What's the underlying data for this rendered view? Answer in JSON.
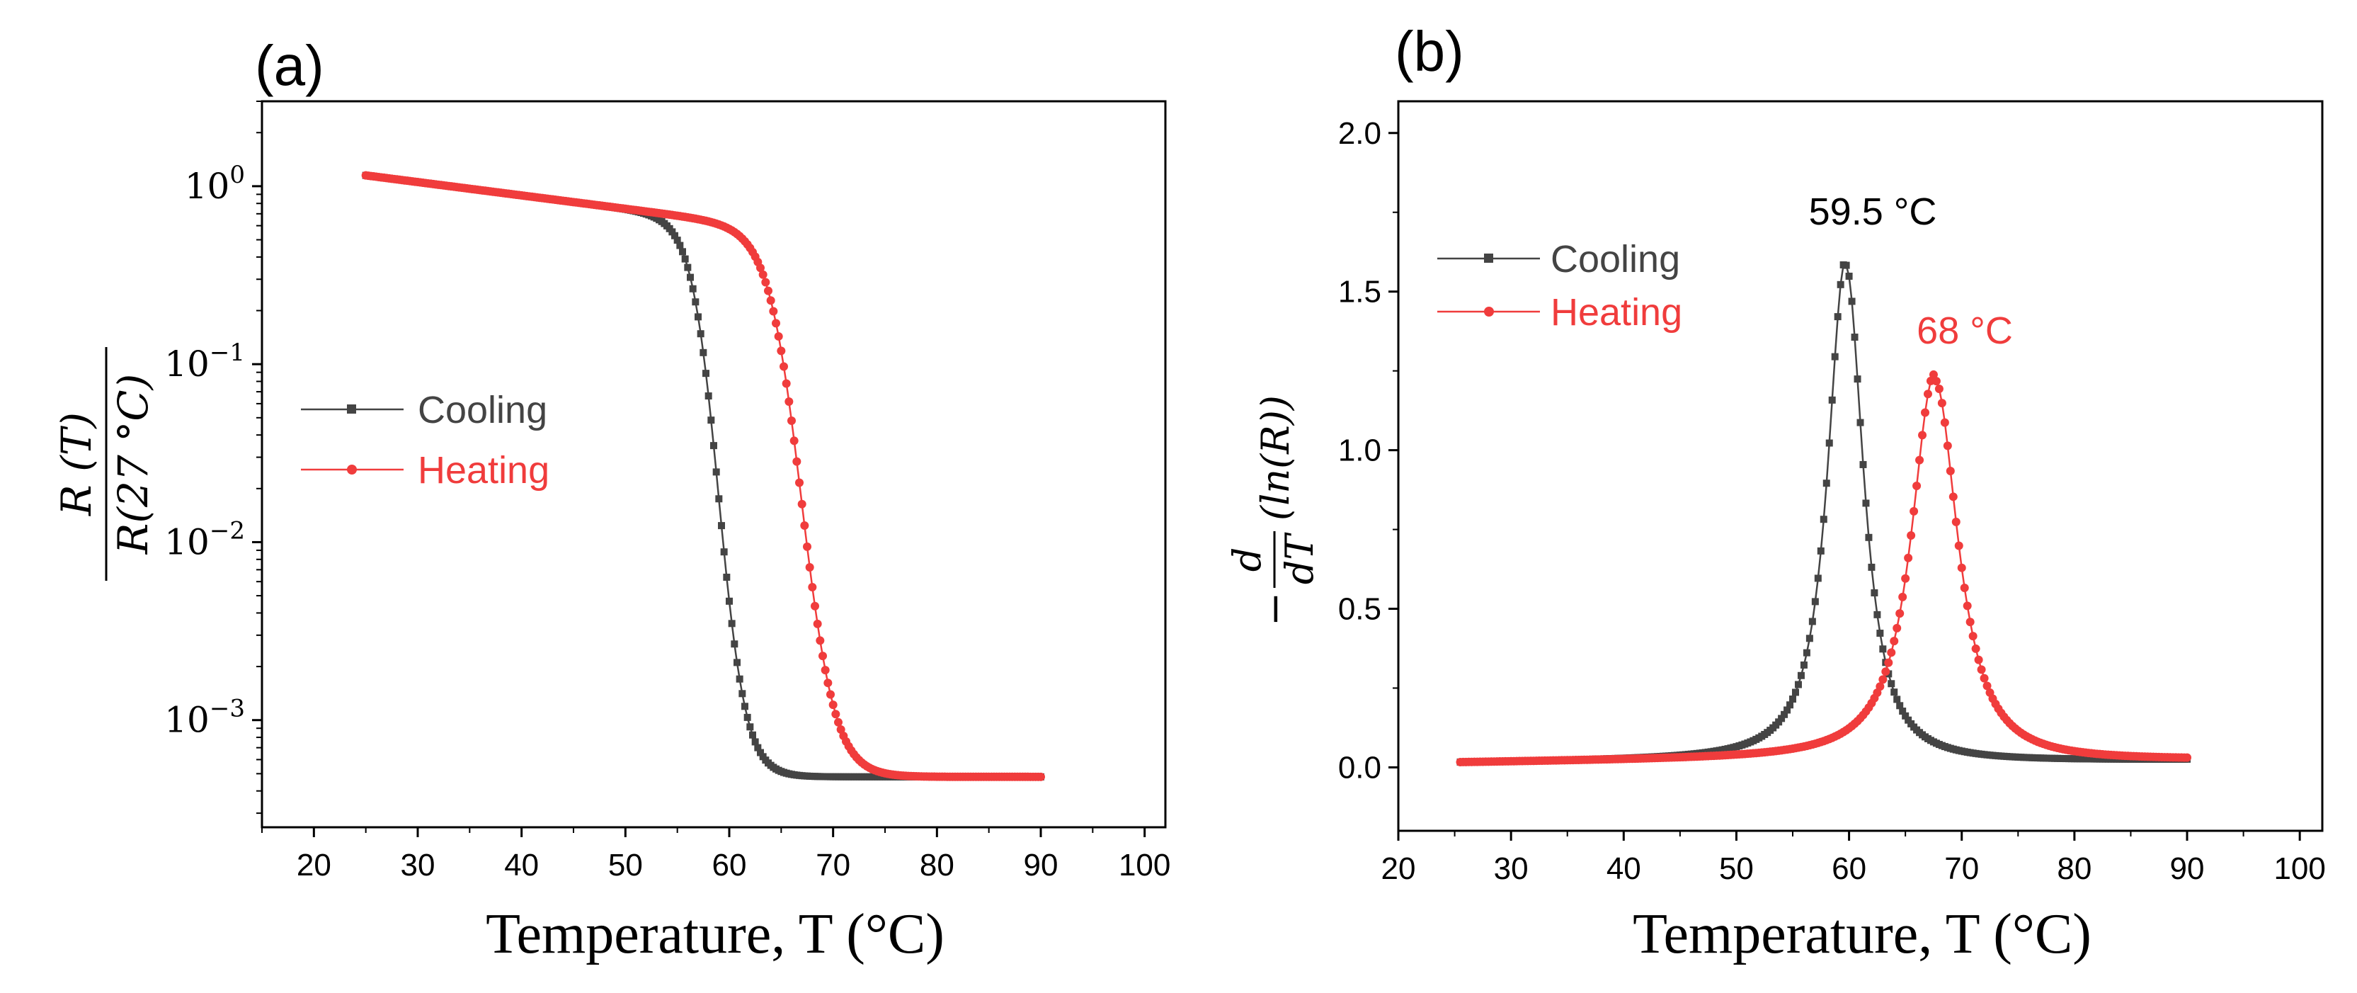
{
  "colors": {
    "cooling": "#444444",
    "heating": "#f03c3c"
  },
  "chart_data": [
    {
      "panel_label": "(a)",
      "type": "line",
      "yscale": "log",
      "xlabel": "Temperature, T (°C)",
      "ylabel": {
        "numerator": "R (T)",
        "denominator": "R(27 °C)"
      },
      "xlim": [
        15,
        102
      ],
      "ylim": [
        0.00025,
        3
      ],
      "xticks": [
        "20",
        "30",
        "40",
        "50",
        "60",
        "70",
        "80",
        "90",
        "100"
      ],
      "yticks": [
        {
          "base": "10",
          "exp": "0"
        },
        {
          "base": "10",
          "exp": "−1"
        },
        {
          "base": "10",
          "exp": "−2"
        },
        {
          "base": "10",
          "exp": "−3"
        }
      ],
      "legend": {
        "placement": "center-left",
        "entries": [
          "Cooling",
          "Heating"
        ]
      },
      "series": [
        {
          "name": "Cooling",
          "marker": "square",
          "T0": 59,
          "w": 1.3,
          "x_range": [
            25,
            90
          ],
          "low_plateau": 0.00048
        },
        {
          "name": "Heating",
          "marker": "circle",
          "T0": 67,
          "w": 1.6,
          "x_range": [
            25,
            90
          ],
          "low_plateau": 0.00048
        }
      ]
    },
    {
      "panel_label": "(b)",
      "type": "line",
      "yscale": "linear",
      "xlabel": "Temperature, T (°C)",
      "ylabel": {
        "prefix": "−",
        "numerator": "d",
        "denominator": "dT",
        "suffix": "(ln(R))"
      },
      "xlim": [
        20,
        102
      ],
      "ylim": [
        -0.2,
        2.1
      ],
      "xticks": [
        "20",
        "30",
        "40",
        "50",
        "60",
        "70",
        "80",
        "90",
        "100"
      ],
      "yticks": [
        "0.0",
        "0.5",
        "1.0",
        "1.5",
        "2.0"
      ],
      "legend": {
        "placement": "upper-left",
        "entries": [
          "Cooling",
          "Heating"
        ]
      },
      "annotations": [
        {
          "text": "59.5 °C",
          "series": "Cooling",
          "x": 59.5,
          "y": 1.6
        },
        {
          "text": "68 °C",
          "series": "Heating",
          "x": 68,
          "y": 1.24
        }
      ],
      "series": [
        {
          "name": "Cooling",
          "marker": "square",
          "peak_x": 59.7,
          "peak_y": 1.6,
          "x_range": [
            25.5,
            90
          ]
        },
        {
          "name": "Heating",
          "marker": "circle",
          "peak_x": 67.6,
          "peak_y": 1.24,
          "x_range": [
            25.5,
            90
          ]
        }
      ]
    }
  ]
}
